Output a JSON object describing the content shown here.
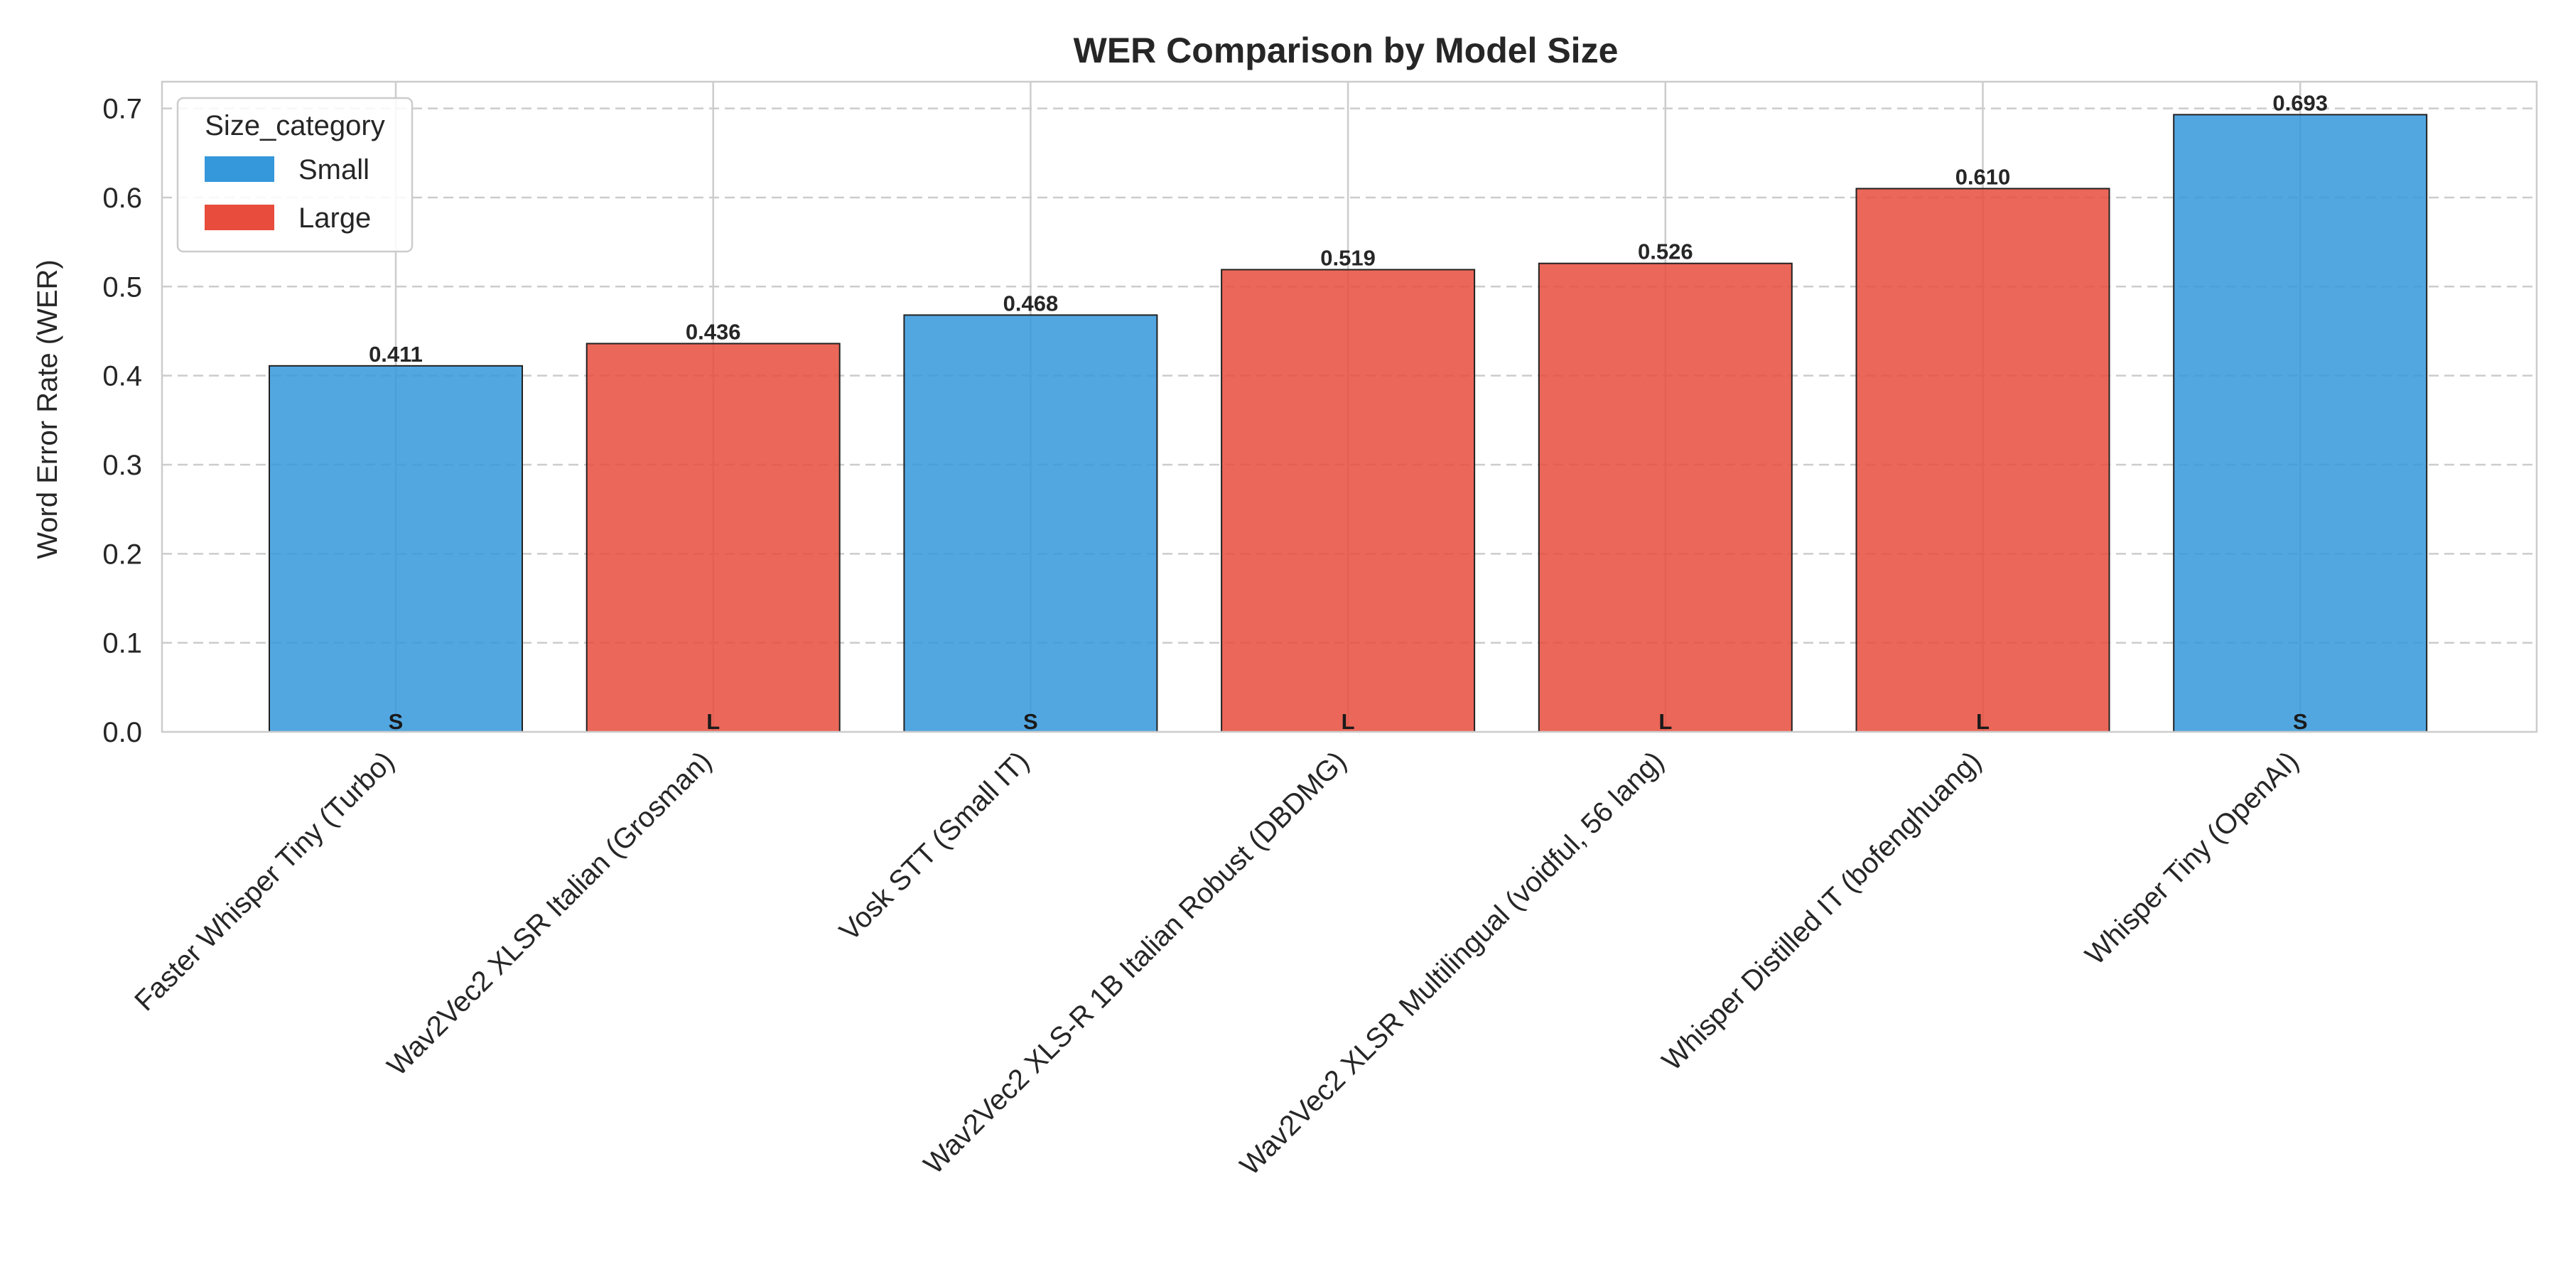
{
  "chart_data": {
    "type": "bar",
    "title": "WER Comparison by Model Size",
    "xlabel": "",
    "ylabel": "Word Error Rate (WER)",
    "ylim": [
      0,
      0.73
    ],
    "yticks": [
      0.0,
      0.1,
      0.2,
      0.3,
      0.4,
      0.5,
      0.6,
      0.7
    ],
    "grid": {
      "y": true,
      "x": true
    },
    "categories": [
      "Faster Whisper Tiny (Turbo)",
      "Wav2Vec2 XLSR Italian (Grosman)",
      "Vosk STT (Small IT)",
      "Wav2Vec2 XLS-R 1B Italian Robust (DBDMG)",
      "Wav2Vec2 XLSR Multilingual (voidful, 56 lang)",
      "Whisper Distilled IT (bofenghuang)",
      "Whisper Tiny (OpenAI)"
    ],
    "values": [
      0.411,
      0.436,
      0.468,
      0.519,
      0.526,
      0.61,
      0.693
    ],
    "value_labels": [
      "0.411",
      "0.436",
      "0.468",
      "0.519",
      "0.526",
      "0.610",
      "0.693"
    ],
    "size_category": [
      "Small",
      "Large",
      "Small",
      "Large",
      "Large",
      "Large",
      "Small"
    ],
    "bar_labels": [
      "S",
      "L",
      "S",
      "L",
      "L",
      "L",
      "S"
    ],
    "legend": {
      "title": "Size_category",
      "placement": "top-left",
      "entries": [
        {
          "name": "Small",
          "color": "#3498db"
        },
        {
          "name": "Large",
          "color": "#e74c3c"
        }
      ]
    },
    "colors": {
      "Small": "#3498db",
      "Large": "#e74c3c"
    }
  }
}
